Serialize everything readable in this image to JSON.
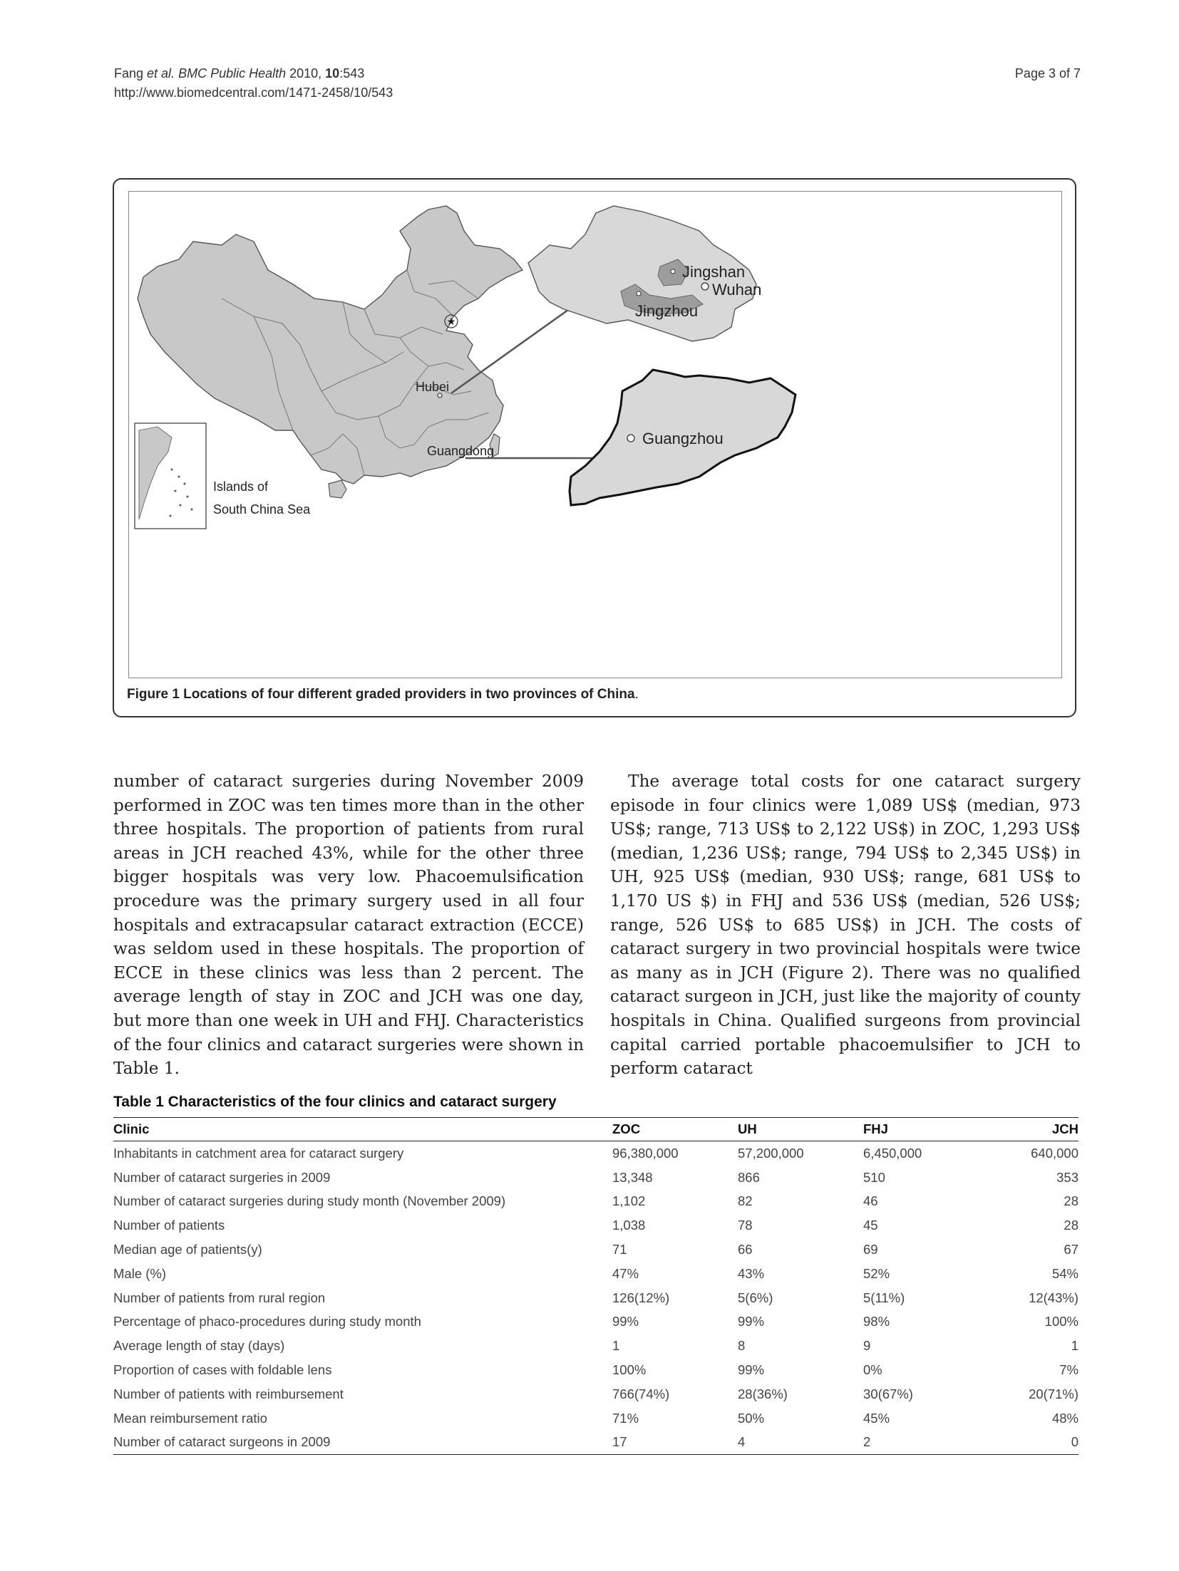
{
  "header": {
    "authors": "Fang ",
    "et_al": "et al.",
    "journal": " BMC Public Health",
    "year": " 2010, ",
    "volume": "10",
    "pages": ":543",
    "url": "http://www.biomedcentral.com/1471-2458/10/543",
    "page_label": "Page 3 of 7"
  },
  "figure": {
    "labels": {
      "hubei": "Hubei",
      "guangdong": "Guangdong",
      "inset_line1": "Islands of",
      "inset_line2": "South China Sea",
      "jingshan": "Jingshan",
      "wuhan": "Wuhan",
      "jingzhou": "Jingzhou",
      "guangzhou": "Guangzhou"
    },
    "caption_prefix": "Figure 1",
    "caption_text": " Locations of four different graded providers in two provinces of China",
    "caption_end": "."
  },
  "body": {
    "left_paragraph": "number of cataract surgeries during November 2009 performed in ZOC was ten times more than in the other three hospitals. The proportion of patients from rural areas in JCH reached 43%, while for the other three bigger hospitals was very low. Phacoemulsification procedure was the primary surgery used in all four hospitals and extracapsular cataract extraction (ECCE) was seldom used in these hospitals. The proportion of ECCE in these clinics was less than 2 percent. The average length of stay in ZOC and JCH was one day, but more than one week in UH and FHJ. Characteristics of the four clinics and cataract surgeries were shown in Table 1.",
    "right_paragraph": "The average total costs for one cataract surgery episode in four clinics were 1,089 US$ (median, 973 US$; range, 713 US$ to 2,122 US$) in ZOC, 1,293 US$ (median, 1,236 US$; range, 794 US$ to 2,345 US$) in UH, 925 US$ (median, 930 US$; range, 681 US$ to 1,170 US $) in FHJ and 536 US$ (median, 526 US$; range, 526 US$ to 685 US$) in JCH. The costs of cataract surgery in two provincial hospitals were twice as many as in JCH (Figure 2). There was no qualified cataract surgeon in JCH, just like the majority of county hospitals in China. Qualified surgeons from provincial capital carried portable phacoemulsifier to JCH to perform cataract"
  },
  "table": {
    "title": "Table 1 Characteristics of the four clinics and cataract surgery",
    "headers": [
      "Clinic",
      "ZOC",
      "UH",
      "FHJ",
      "JCH"
    ],
    "rows": [
      [
        "Inhabitants in catchment area for cataract surgery",
        "96,380,000",
        "57,200,000",
        "6,450,000",
        "640,000"
      ],
      [
        "Number of cataract surgeries in 2009",
        "13,348",
        "866",
        "510",
        "353"
      ],
      [
        "Number of cataract surgeries during study month (November 2009)",
        "1,102",
        "82",
        "46",
        "28"
      ],
      [
        "Number of patients",
        "1,038",
        "78",
        "45",
        "28"
      ],
      [
        "Median age of patients(y)",
        "71",
        "66",
        "69",
        "67"
      ],
      [
        "Male (%)",
        "47%",
        "43%",
        "52%",
        "54%"
      ],
      [
        "Number of patients from rural region",
        "126(12%)",
        "5(6%)",
        "5(11%)",
        "12(43%)"
      ],
      [
        "Percentage of phaco-procedures during study month",
        "99%",
        "99%",
        "98%",
        "100%"
      ],
      [
        "Average length of stay (days)",
        "1",
        "8",
        "9",
        "1"
      ],
      [
        "Proportion of cases with foldable lens",
        "100%",
        "99%",
        "0%",
        "7%"
      ],
      [
        "Number of patients with reimbursement",
        "766(74%)",
        "28(36%)",
        "30(67%)",
        "20(71%)"
      ],
      [
        "Mean reimbursement ratio",
        "71%",
        "50%",
        "45%",
        "48%"
      ],
      [
        "Number of cataract surgeons in 2009",
        "17",
        "4",
        "2",
        "0"
      ]
    ]
  }
}
